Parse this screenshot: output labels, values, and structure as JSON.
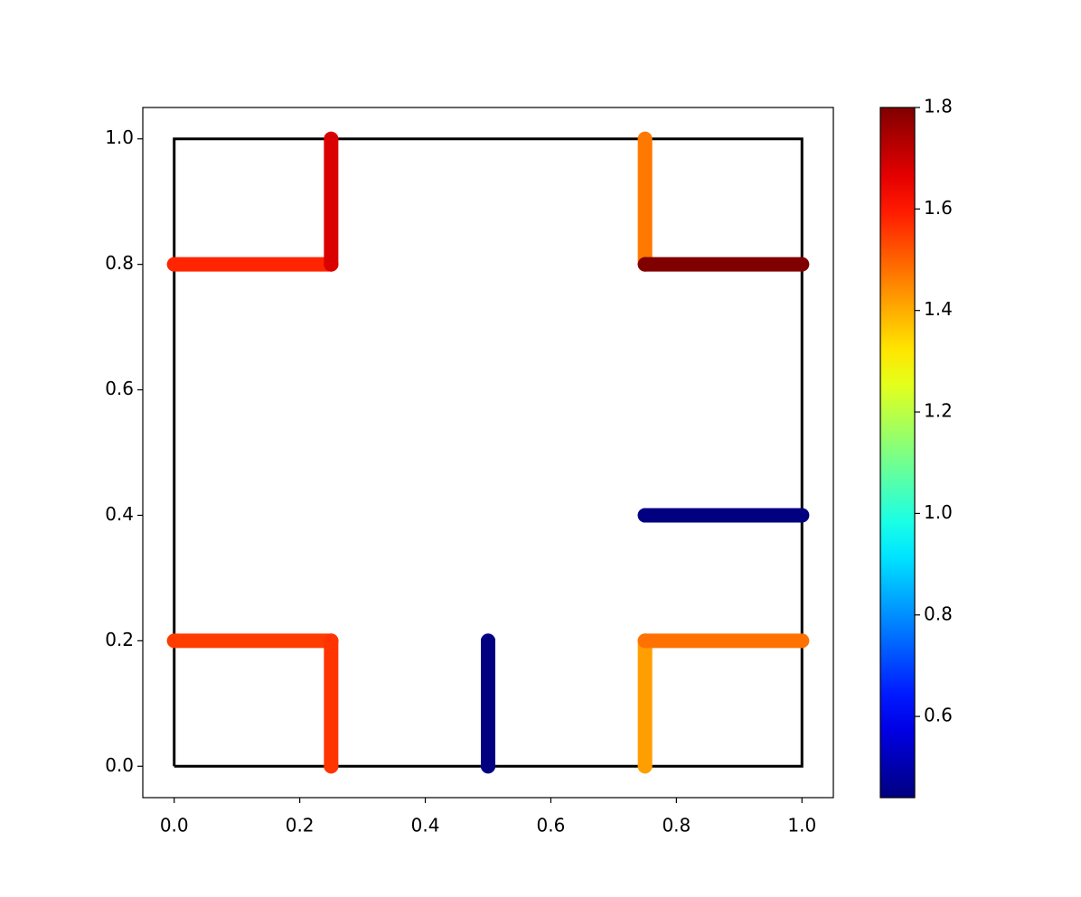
{
  "chart_data": {
    "type": "colored_segments",
    "colormap": "jet",
    "clim": [
      0.44,
      1.8
    ],
    "cticks": [
      0.6,
      0.8,
      {
        "value": 1,
        "label": "1.0"
      },
      1.2,
      1.4,
      1.6,
      1.8
    ],
    "xlim": [
      -0.05,
      1.05
    ],
    "ylim": [
      -0.05,
      1.05
    ],
    "xticks": [
      {
        "value": 0,
        "label": "0.0"
      },
      0.2,
      0.4,
      0.6,
      0.8,
      {
        "value": 1,
        "label": "1.0"
      }
    ],
    "yticks": [
      {
        "value": 0,
        "label": "0.0"
      },
      0.2,
      0.4,
      0.6,
      0.8,
      {
        "value": 1,
        "label": "1.0"
      }
    ],
    "outline": {
      "color": "#000000",
      "x": [
        0,
        1,
        1,
        0,
        0
      ],
      "y": [
        0,
        0,
        1,
        1,
        0
      ]
    },
    "segments": [
      {
        "x": [
          0,
          0.25
        ],
        "y": [
          0.8,
          0.8
        ],
        "value": 1.58
      },
      {
        "x": [
          0.25,
          0.25
        ],
        "y": [
          0.8,
          1.0
        ],
        "value": 1.68
      },
      {
        "x": [
          0.75,
          0.75
        ],
        "y": [
          0.8,
          1.0
        ],
        "value": 1.47
      },
      {
        "x": [
          0.75,
          1.0
        ],
        "y": [
          0.8,
          0.8
        ],
        "value": 1.8
      },
      {
        "x": [
          0.75,
          1.0
        ],
        "y": [
          0.4,
          0.4
        ],
        "value": 0.44
      },
      {
        "x": [
          0,
          0.25
        ],
        "y": [
          0.2,
          0.2
        ],
        "value": 1.55
      },
      {
        "x": [
          0.25,
          0.25
        ],
        "y": [
          0,
          0.2
        ],
        "value": 1.56
      },
      {
        "x": [
          0.5,
          0.5
        ],
        "y": [
          0,
          0.2
        ],
        "value": 0.44
      },
      {
        "x": [
          0.75,
          0.75
        ],
        "y": [
          0,
          0.2
        ],
        "value": 1.42
      },
      {
        "x": [
          0.75,
          1.0
        ],
        "y": [
          0.2,
          0.2
        ],
        "value": 1.48
      }
    ]
  }
}
